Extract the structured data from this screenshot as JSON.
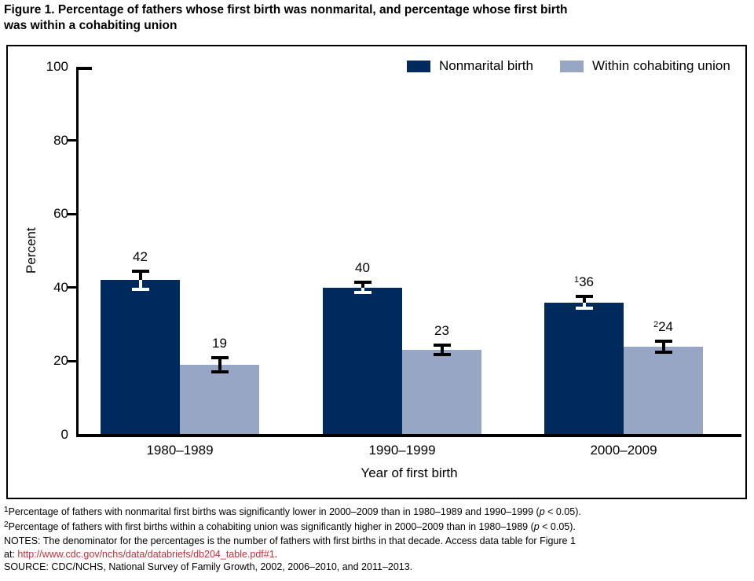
{
  "page": {
    "title_lines": [
      "Figure 1. Percentage of fathers whose first birth was nonmarital, and percentage whose first birth",
      "was within a cohabiting union"
    ]
  },
  "chart_data": {
    "type": "bar",
    "title": "Figure 1. Percentage of fathers whose first birth was nonmarital, and percentage whose first birth was within a cohabiting union",
    "categories": [
      "1980–1989",
      "1990–1999",
      "2000–2009"
    ],
    "series": [
      {
        "name": "Nonmarital birth",
        "color": "#002a5e",
        "values": [
          42,
          40,
          36
        ],
        "errors": [
          2.8,
          1.8,
          2.1
        ],
        "value_labels": [
          "42",
          "40",
          "36"
        ],
        "value_label_sups": [
          "",
          "",
          "1"
        ]
      },
      {
        "name": "Within cohabiting union",
        "color": "#98a6c6",
        "values": [
          19,
          23,
          24
        ],
        "errors": [
          2.3,
          1.7,
          1.9
        ],
        "value_labels": [
          "19",
          "23",
          "24"
        ],
        "value_label_sups": [
          "",
          "",
          "2"
        ]
      }
    ],
    "xlabel": "Year of first birth",
    "ylabel": "Percent",
    "ylim": [
      0,
      100
    ],
    "yticks": [
      0,
      20,
      40,
      60,
      80,
      100
    ],
    "legend_position": "top-right",
    "grid": false
  },
  "colors": {
    "bar_dark": "#002a5e",
    "bar_light": "#98a6c6",
    "link_red": "#c23038",
    "axis": "#000000"
  },
  "footnotes": [
    {
      "segments": [
        {
          "t": "1",
          "c": "sup"
        },
        {
          "t": "Percentage of fathers with nonmarital first births was significantly lower in 2000–2009 than in 1980–1989 and 1990–1999 ("
        },
        {
          "t": "p",
          "c": "italic"
        },
        {
          "t": " < 0.05)."
        }
      ]
    },
    {
      "segments": [
        {
          "t": "2",
          "c": "sup"
        },
        {
          "t": "Percentage of fathers with first births within a cohabiting union was significantly higher in 2000–2009 than in 1980–1989 ("
        },
        {
          "t": "p",
          "c": "italic"
        },
        {
          "t": " < 0.05)."
        }
      ]
    },
    {
      "segments": [
        {
          "t": "NOTES: The denominator for the percentages is the number of fathers with first births in that decade. Access data table for Figure 1"
        }
      ]
    },
    {
      "segments": [
        {
          "t": "at: "
        },
        {
          "t": "http://www.cdc.gov/nchs/data/databriefs/db204_table.pdf#1",
          "c": "link"
        },
        {
          "t": "."
        }
      ]
    },
    {
      "segments": [
        {
          "t": "SOURCE: CDC/NCHS, National Survey of Family Growth, 2002, 2006–2010, and 2011–2013."
        }
      ]
    }
  ]
}
